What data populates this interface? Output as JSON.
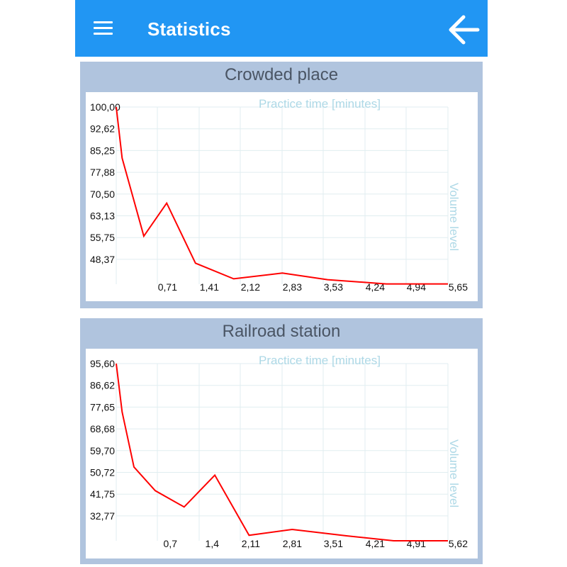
{
  "app": {
    "title": "Statistics",
    "menu_icon": "hamburger-menu-icon",
    "back_icon": "arrow-back-icon",
    "colors": {
      "appbar": "#2196f3",
      "card": "#b0c4de",
      "line": "#ff0000",
      "grid": "#e0eef0",
      "axis_title": "#add8e6"
    }
  },
  "charts": [
    {
      "title": "Crowded place",
      "chart_data": {
        "type": "line",
        "title": "Crowded place",
        "xlabel": "Practice time [minutes]",
        "ylabel": "Volume level",
        "grid": true,
        "x_ticks": [
          "0,71",
          "1,41",
          "2,12",
          "2,83",
          "3,53",
          "4,24",
          "4,94",
          "5,65"
        ],
        "y_ticks": [
          "100,00",
          "92,62",
          "85,25",
          "77,88",
          "70,50",
          "63,13",
          "55,75",
          "48,37"
        ],
        "xlim": [
          0,
          5.65
        ],
        "ylim": [
          41,
          100
        ],
        "series": [
          {
            "x": [
              0,
              0.1,
              0.47,
              0.86,
              1.35,
              2.0,
              2.83,
              3.6,
              4.6,
              5.65
            ],
            "y": [
              100,
              83,
              57,
              68,
              48,
              42.8,
              44.7,
              42.5,
              41.1,
              41.1
            ]
          }
        ]
      }
    },
    {
      "title": "Railroad station",
      "chart_data": {
        "type": "line",
        "title": "Railroad station",
        "xlabel": "Practice time [minutes]",
        "ylabel": "Volume level",
        "grid": true,
        "x_ticks": [
          "0,7",
          "1,4",
          "2,11",
          "2,81",
          "3,51",
          "4,21",
          "4,91",
          "5,62"
        ],
        "y_ticks": [
          "95,60",
          "86,62",
          "77,65",
          "68,68",
          "59,70",
          "50,72",
          "41,75",
          "32,77"
        ],
        "xlim": [
          0,
          5.62
        ],
        "ylim": [
          23.8,
          95.6
        ],
        "series": [
          {
            "x": [
              0,
              0.1,
              0.3,
              0.66,
              1.15,
              1.67,
              2.25,
              2.98,
              3.9,
              4.7,
              5.62
            ],
            "y": [
              95.6,
              76,
              53.7,
              44.1,
              37.5,
              50.4,
              26,
              28.4,
              25.8,
              23.8,
              23.8
            ]
          }
        ]
      }
    }
  ]
}
